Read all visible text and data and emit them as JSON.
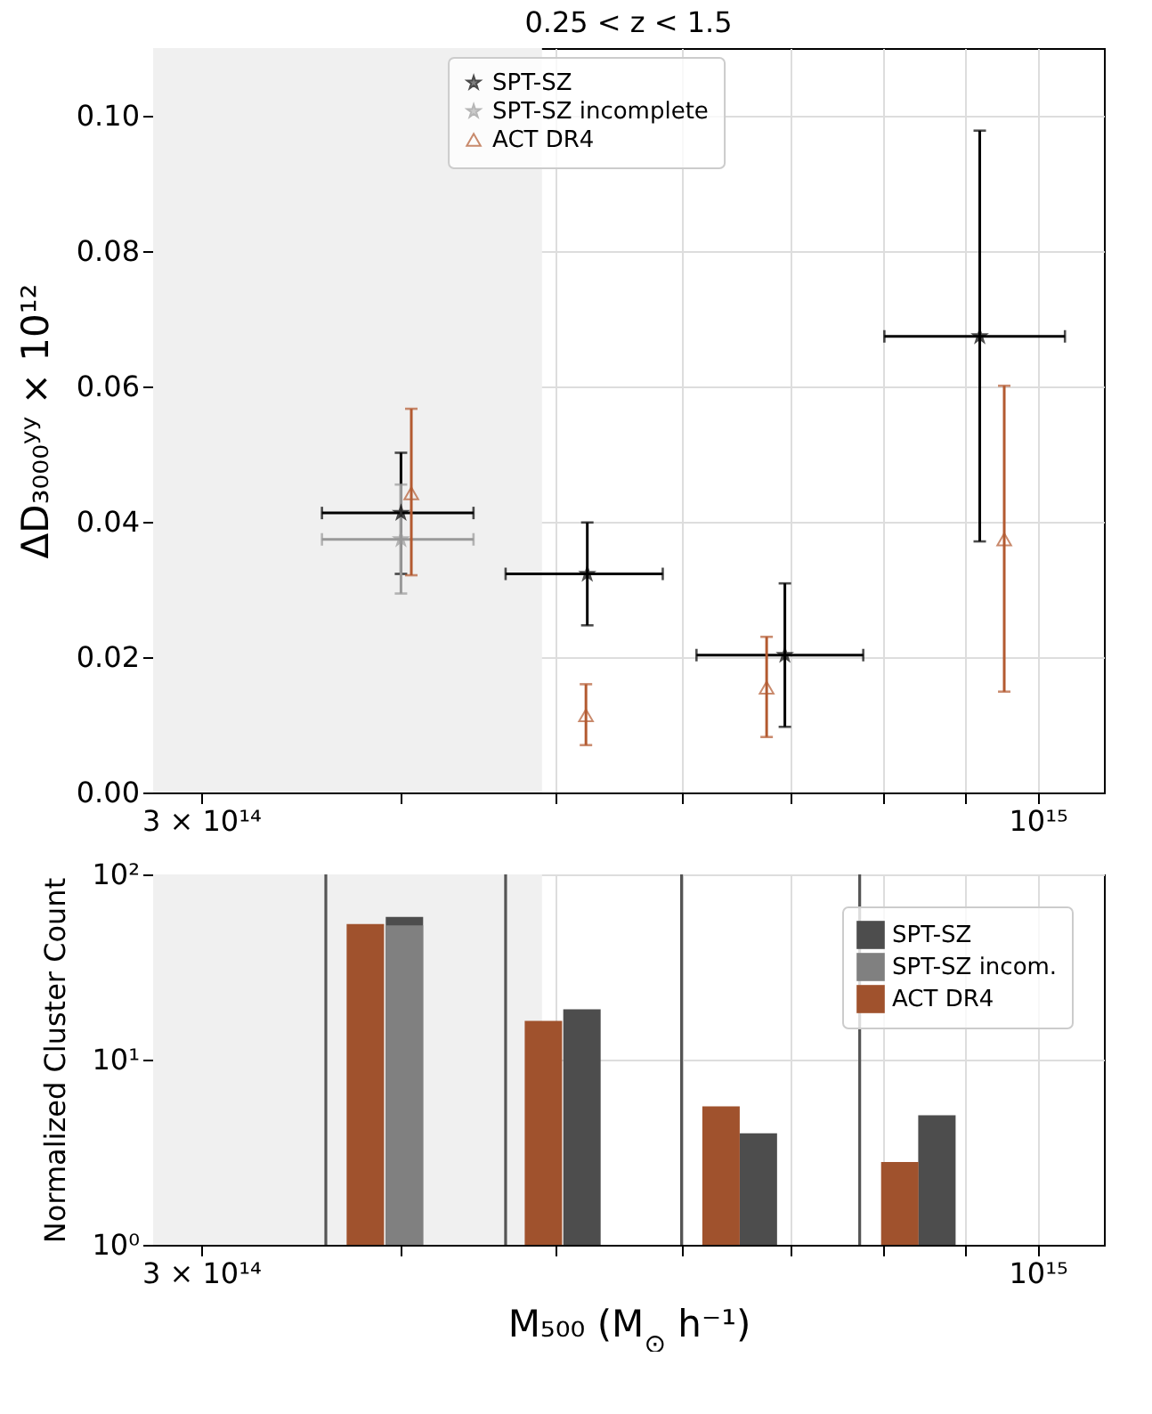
{
  "chart_data": [
    {
      "type": "scatter",
      "title": "0.25 < z < 1.5",
      "ylabel": "ΔD₃₀₀₀ʸʸ × 10¹²",
      "log": "x",
      "grid": true,
      "legend": "top",
      "xlim": [
        280000000000000.0,
        1100000000000000.0
      ],
      "xticks": [
        {
          "value": 300000000000000.0,
          "label": "3 × 10¹⁴"
        },
        {
          "value": 400000000000000.0,
          "label": null
        },
        {
          "value": 500000000000000.0,
          "label": null
        },
        {
          "value": 600000000000000.0,
          "label": null
        },
        {
          "value": 700000000000000.0,
          "label": null
        },
        {
          "value": 800000000000000.0,
          "label": null
        },
        {
          "value": 900000000000000.0,
          "label": null
        },
        {
          "value": 1000000000000000.0,
          "label": "10¹⁵"
        }
      ],
      "ylim": [
        0,
        0.11
      ],
      "yticks": [
        {
          "value": 0,
          "label": "0.00"
        },
        {
          "value": 0.02,
          "label": "0.02"
        },
        {
          "value": 0.04,
          "label": "0.04"
        },
        {
          "value": 0.06,
          "label": "0.06"
        },
        {
          "value": 0.08,
          "label": "0.08"
        },
        {
          "value": 0.1,
          "label": "0.10"
        }
      ],
      "bands": [
        {
          "axis": "x",
          "from": 280000000000000.0,
          "to": 490000000000000.0,
          "color": "#f0f0f0"
        }
      ],
      "series": [
        {
          "name": "SPT-SZ",
          "color": "#000000",
          "marker": "star",
          "x": [
            400000000000000.0,
            523000000000000.0,
            695000000000000.0,
            920000000000000.0
          ],
          "values": [
            0.0413,
            0.0323,
            0.0203,
            0.0674
          ],
          "errors": [
            [
              0.0323,
              0.0502
            ],
            [
              0.0247,
              0.0399
            ],
            [
              0.0097,
              0.0309
            ],
            [
              0.0371,
              0.0978
            ]
          ],
          "xerrors": [
            [
              357000000000000.0,
              444000000000000.0
            ],
            [
              465000000000000.0,
              583000000000000.0
            ],
            [
              612000000000000.0,
              778000000000000.0
            ],
            [
              802000000000000.0,
              1040000000000000.0
            ]
          ]
        },
        {
          "name": "SPT-SZ incomplete",
          "color": "#999999",
          "marker": "star",
          "x": [
            400000000000000.0
          ],
          "values": [
            0.0374
          ],
          "errors": [
            [
              0.0294,
              0.0455
            ]
          ],
          "xerrors": [
            [
              357000000000000.0,
              444000000000000.0
            ]
          ]
        },
        {
          "name": "ACT DR4",
          "color": "#b35a30",
          "marker": "triangle",
          "x": [
            406000000000000.0,
            522000000000000.0,
            677000000000000.0,
            953000000000000.0
          ],
          "values": [
            0.0442,
            0.0114,
            0.0155,
            0.0374
          ],
          "errors": [
            [
              0.0321,
              0.0567
            ],
            [
              0.007,
              0.016
            ],
            [
              0.0082,
              0.023
            ],
            [
              0.0149,
              0.0601
            ]
          ]
        }
      ]
    },
    {
      "type": "bar",
      "ylabel": "Normalized Cluster Count",
      "xlabel": "M₅₀₀ (M$_{⊙}$ h⁻¹)",
      "log": "xy",
      "grid": true,
      "legend": "top right",
      "xlim": [
        280000000000000.0,
        1100000000000000.0
      ],
      "xticks": [
        {
          "value": 300000000000000.0,
          "label": "3 × 10¹⁴"
        },
        {
          "value": 400000000000000.0,
          "label": null
        },
        {
          "value": 500000000000000.0,
          "label": null
        },
        {
          "value": 600000000000000.0,
          "label": null
        },
        {
          "value": 700000000000000.0,
          "label": null
        },
        {
          "value": 800000000000000.0,
          "label": null
        },
        {
          "value": 900000000000000.0,
          "label": null
        },
        {
          "value": 1000000000000000.0,
          "label": "10¹⁵"
        }
      ],
      "ylim": [
        1,
        100
      ],
      "yticks": [
        {
          "value": 1,
          "label": "10⁰"
        },
        {
          "value": 10,
          "label": "10¹"
        },
        {
          "value": 100,
          "label": "10²"
        }
      ],
      "bands": [
        {
          "axis": "x",
          "from": 280000000000000.0,
          "to": 490000000000000.0,
          "color": "#f0f0f0"
        }
      ],
      "ref_lines": [
        {
          "axis": "x",
          "value": 359000000000000.0,
          "color": "#555555"
        },
        {
          "axis": "x",
          "value": 465000000000000.0,
          "color": "#555555"
        },
        {
          "axis": "x",
          "value": 599000000000000.0,
          "color": "#555555"
        },
        {
          "axis": "x",
          "value": 774000000000000.0,
          "color": "#555555"
        }
      ],
      "series": [
        {
          "name": "SPT-SZ",
          "color": "#4d4d4d",
          "x": [
            402000000000000.0,
            519000000000000.0,
            669000000000000.0,
            865000000000000.0
          ],
          "values": [
            59,
            18.7,
            4.0,
            5.0
          ]
        },
        {
          "name": "SPT-SZ incom.",
          "color": "#808080",
          "x": [
            402000000000000.0
          ],
          "values": [
            53
          ]
        },
        {
          "name": "ACT DR4",
          "color": "#a0522d",
          "x": [
            380000000000000.0,
            491000000000000.0,
            634000000000000.0,
            820000000000000.0
          ],
          "values": [
            54,
            16.2,
            5.6,
            2.8
          ]
        }
      ]
    }
  ]
}
